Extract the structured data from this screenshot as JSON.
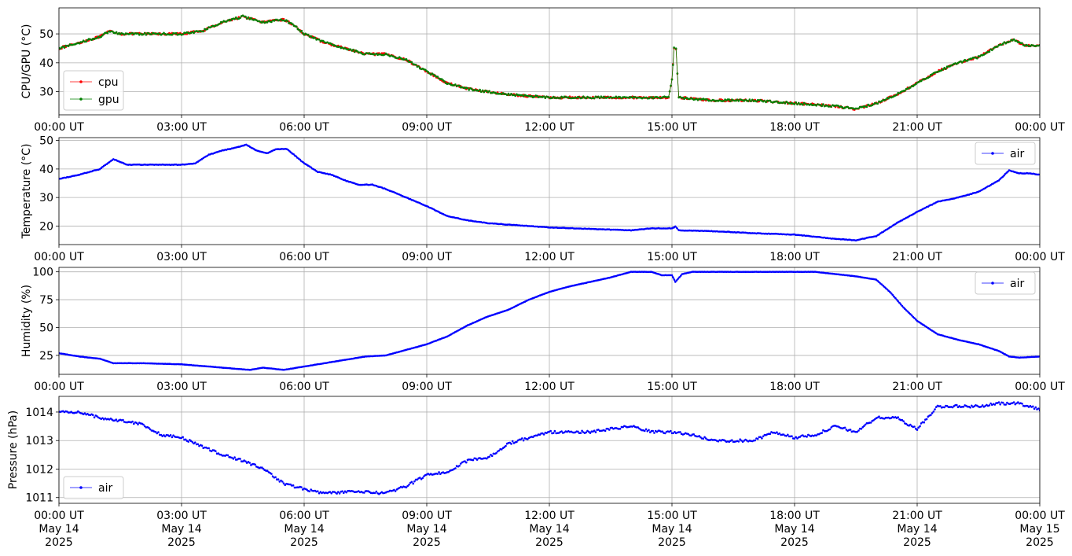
{
  "chart_data": [
    {
      "type": "line",
      "ylabel": "CPU/GPU (°C)",
      "xlim": [
        "00:00",
        "24:00"
      ],
      "ylim": [
        22,
        59
      ],
      "yticks": [
        30,
        40,
        50
      ],
      "grid": true,
      "legend": "lower-left",
      "series": [
        {
          "name": "cpu",
          "color": "#ff0000",
          "points": [
            [
              "00:00",
              45
            ],
            [
              "00:30",
              47
            ],
            [
              "01:00",
              49
            ],
            [
              "01:15",
              51
            ],
            [
              "01:30",
              50
            ],
            [
              "02:00",
              50
            ],
            [
              "02:30",
              50
            ],
            [
              "03:00",
              50
            ],
            [
              "03:30",
              51
            ],
            [
              "04:00",
              54
            ],
            [
              "04:30",
              56
            ],
            [
              "05:00",
              54
            ],
            [
              "05:30",
              55
            ],
            [
              "05:45",
              53
            ],
            [
              "06:00",
              50
            ],
            [
              "06:30",
              47
            ],
            [
              "07:00",
              45
            ],
            [
              "07:30",
              43
            ],
            [
              "08:00",
              43
            ],
            [
              "08:30",
              41
            ],
            [
              "09:00",
              37
            ],
            [
              "09:30",
              33
            ],
            [
              "10:00",
              31
            ],
            [
              "10:30",
              30
            ],
            [
              "11:00",
              29
            ],
            [
              "12:00",
              28
            ],
            [
              "13:00",
              28
            ],
            [
              "14:00",
              28
            ],
            [
              "14:55",
              28
            ],
            [
              "15:00",
              34
            ],
            [
              "15:03",
              45
            ],
            [
              "15:06",
              45
            ],
            [
              "15:10",
              28
            ],
            [
              "16:00",
              27
            ],
            [
              "17:00",
              27
            ],
            [
              "18:00",
              26
            ],
            [
              "19:00",
              25
            ],
            [
              "19:30",
              24
            ],
            [
              "20:00",
              26
            ],
            [
              "20:30",
              29
            ],
            [
              "21:00",
              33
            ],
            [
              "21:30",
              37
            ],
            [
              "22:00",
              40
            ],
            [
              "22:30",
              42
            ],
            [
              "23:00",
              46
            ],
            [
              "23:20",
              48
            ],
            [
              "23:40",
              46
            ],
            [
              "24:00",
              46
            ]
          ]
        },
        {
          "name": "gpu",
          "color": "#008000",
          "points": [
            [
              "00:00",
              45
            ],
            [
              "00:30",
              47
            ],
            [
              "01:00",
              49
            ],
            [
              "01:15",
              51
            ],
            [
              "01:30",
              50
            ],
            [
              "02:00",
              50
            ],
            [
              "02:30",
              50
            ],
            [
              "03:00",
              50
            ],
            [
              "03:30",
              51
            ],
            [
              "04:00",
              54
            ],
            [
              "04:30",
              56
            ],
            [
              "05:00",
              54
            ],
            [
              "05:30",
              55
            ],
            [
              "05:45",
              53
            ],
            [
              "06:00",
              50
            ],
            [
              "06:30",
              47
            ],
            [
              "07:00",
              45
            ],
            [
              "07:30",
              43
            ],
            [
              "08:00",
              43
            ],
            [
              "08:30",
              41
            ],
            [
              "09:00",
              37
            ],
            [
              "09:30",
              33
            ],
            [
              "10:00",
              31
            ],
            [
              "10:30",
              30
            ],
            [
              "11:00",
              29
            ],
            [
              "12:00",
              28
            ],
            [
              "13:00",
              28
            ],
            [
              "14:00",
              28
            ],
            [
              "14:55",
              28
            ],
            [
              "15:00",
              34
            ],
            [
              "15:03",
              45
            ],
            [
              "15:06",
              45
            ],
            [
              "15:10",
              28
            ],
            [
              "16:00",
              27
            ],
            [
              "17:00",
              27
            ],
            [
              "18:00",
              26
            ],
            [
              "19:00",
              25
            ],
            [
              "19:30",
              24
            ],
            [
              "20:00",
              26
            ],
            [
              "20:30",
              29
            ],
            [
              "21:00",
              33
            ],
            [
              "21:30",
              37
            ],
            [
              "22:00",
              40
            ],
            [
              "22:30",
              42
            ],
            [
              "23:00",
              46
            ],
            [
              "23:20",
              48
            ],
            [
              "23:40",
              46
            ],
            [
              "24:00",
              46
            ]
          ]
        }
      ]
    },
    {
      "type": "line",
      "ylabel": "Temperature (°C)",
      "xlim": [
        "00:00",
        "24:00"
      ],
      "ylim": [
        13.5,
        51
      ],
      "yticks": [
        20,
        30,
        40,
        50
      ],
      "grid": true,
      "legend": "upper-right",
      "series": [
        {
          "name": "air",
          "color": "#0000ff",
          "points": [
            [
              "00:00",
              36.5
            ],
            [
              "00:30",
              38
            ],
            [
              "01:00",
              40
            ],
            [
              "01:20",
              43.5
            ],
            [
              "01:40",
              41.5
            ],
            [
              "02:00",
              41.5
            ],
            [
              "02:30",
              41.5
            ],
            [
              "03:00",
              41.5
            ],
            [
              "03:20",
              42
            ],
            [
              "03:40",
              45
            ],
            [
              "04:00",
              46.5
            ],
            [
              "04:20",
              47.5
            ],
            [
              "04:35",
              48.5
            ],
            [
              "04:50",
              46.5
            ],
            [
              "05:05",
              45.5
            ],
            [
              "05:20",
              47
            ],
            [
              "05:35",
              47
            ],
            [
              "05:50",
              44
            ],
            [
              "06:00",
              42
            ],
            [
              "06:20",
              39
            ],
            [
              "06:40",
              38
            ],
            [
              "07:00",
              36
            ],
            [
              "07:20",
              34.5
            ],
            [
              "07:40",
              34.5
            ],
            [
              "08:00",
              33
            ],
            [
              "08:30",
              30
            ],
            [
              "09:00",
              27
            ],
            [
              "09:30",
              23.5
            ],
            [
              "10:00",
              22
            ],
            [
              "10:30",
              21
            ],
            [
              "11:00",
              20.5
            ],
            [
              "12:00",
              19.5
            ],
            [
              "13:00",
              19
            ],
            [
              "14:00",
              18.5
            ],
            [
              "14:30",
              19.2
            ],
            [
              "15:00",
              19.2
            ],
            [
              "15:05",
              19.8
            ],
            [
              "15:10",
              18.5
            ],
            [
              "16:00",
              18.2
            ],
            [
              "17:00",
              17.5
            ],
            [
              "18:00",
              17
            ],
            [
              "19:00",
              15.5
            ],
            [
              "19:30",
              15
            ],
            [
              "20:00",
              16.5
            ],
            [
              "20:30",
              21
            ],
            [
              "21:00",
              25
            ],
            [
              "21:30",
              28.5
            ],
            [
              "22:00",
              30
            ],
            [
              "22:30",
              32
            ],
            [
              "23:00",
              36
            ],
            [
              "23:15",
              39.5
            ],
            [
              "23:30",
              38.5
            ],
            [
              "23:45",
              38.5
            ],
            [
              "24:00",
              38
            ]
          ]
        }
      ]
    },
    {
      "type": "line",
      "ylabel": "Humidity (%)",
      "xlim": [
        "00:00",
        "24:00"
      ],
      "ylim": [
        8,
        104
      ],
      "yticks": [
        25,
        50,
        75,
        100
      ],
      "grid": true,
      "legend": "upper-right",
      "series": [
        {
          "name": "air",
          "color": "#0000ff",
          "points": [
            [
              "00:00",
              27
            ],
            [
              "00:30",
              24
            ],
            [
              "01:00",
              22
            ],
            [
              "01:20",
              18
            ],
            [
              "02:00",
              18
            ],
            [
              "03:00",
              17
            ],
            [
              "04:00",
              14
            ],
            [
              "04:40",
              12
            ],
            [
              "05:00",
              14
            ],
            [
              "05:30",
              12
            ],
            [
              "06:00",
              15
            ],
            [
              "06:30",
              18
            ],
            [
              "07:00",
              21
            ],
            [
              "07:30",
              24
            ],
            [
              "08:00",
              25
            ],
            [
              "08:30",
              30
            ],
            [
              "09:00",
              35
            ],
            [
              "09:30",
              42
            ],
            [
              "10:00",
              52
            ],
            [
              "10:30",
              60
            ],
            [
              "11:00",
              66
            ],
            [
              "11:30",
              75
            ],
            [
              "12:00",
              82
            ],
            [
              "12:30",
              87
            ],
            [
              "13:00",
              91
            ],
            [
              "13:30",
              95
            ],
            [
              "14:00",
              100
            ],
            [
              "14:30",
              100
            ],
            [
              "14:45",
              97
            ],
            [
              "15:00",
              97
            ],
            [
              "15:05",
              91
            ],
            [
              "15:15",
              98
            ],
            [
              "15:30",
              100
            ],
            [
              "18:30",
              100
            ],
            [
              "19:00",
              98
            ],
            [
              "19:30",
              96
            ],
            [
              "20:00",
              93
            ],
            [
              "20:20",
              82
            ],
            [
              "20:40",
              68
            ],
            [
              "21:00",
              56
            ],
            [
              "21:30",
              44
            ],
            [
              "22:00",
              39
            ],
            [
              "22:30",
              35
            ],
            [
              "23:00",
              29
            ],
            [
              "23:15",
              24
            ],
            [
              "23:30",
              23
            ],
            [
              "24:00",
              24
            ]
          ]
        }
      ]
    },
    {
      "type": "scatter",
      "ylabel": "Pressure (hPa)",
      "xlim": [
        "00:00",
        "24:00"
      ],
      "ylim": [
        1010.8,
        1014.55
      ],
      "yticks": [
        1011,
        1012,
        1013,
        1014
      ],
      "grid": true,
      "legend": "lower-left",
      "date_labels": [
        "May 14\n2025",
        "May 14\n2025",
        "May 14\n2025",
        "May 14\n2025",
        "May 14\n2025",
        "May 14\n2025",
        "May 14\n2025",
        "May 14\n2025",
        "May 15\n2025"
      ],
      "series": [
        {
          "name": "air",
          "color": "#0000ff",
          "points": [
            [
              "00:00",
              1014.0
            ],
            [
              "00:30",
              1014.0
            ],
            [
              "01:00",
              1013.8
            ],
            [
              "01:30",
              1013.7
            ],
            [
              "02:00",
              1013.6
            ],
            [
              "02:30",
              1013.2
            ],
            [
              "03:00",
              1013.1
            ],
            [
              "03:30",
              1012.8
            ],
            [
              "04:00",
              1012.5
            ],
            [
              "04:30",
              1012.3
            ],
            [
              "05:00",
              1012.0
            ],
            [
              "05:30",
              1011.5
            ],
            [
              "06:00",
              1011.3
            ],
            [
              "06:30",
              1011.15
            ],
            [
              "07:00",
              1011.2
            ],
            [
              "07:30",
              1011.2
            ],
            [
              "08:00",
              1011.15
            ],
            [
              "08:30",
              1011.4
            ],
            [
              "09:00",
              1011.8
            ],
            [
              "09:30",
              1011.9
            ],
            [
              "10:00",
              1012.3
            ],
            [
              "10:30",
              1012.4
            ],
            [
              "11:00",
              1012.9
            ],
            [
              "11:30",
              1013.1
            ],
            [
              "12:00",
              1013.3
            ],
            [
              "13:00",
              1013.3
            ],
            [
              "14:00",
              1013.5
            ],
            [
              "14:30",
              1013.3
            ],
            [
              "15:00",
              1013.3
            ],
            [
              "15:30",
              1013.2
            ],
            [
              "16:00",
              1013.0
            ],
            [
              "16:30",
              1013.0
            ],
            [
              "17:00",
              1013.0
            ],
            [
              "17:30",
              1013.3
            ],
            [
              "18:00",
              1013.1
            ],
            [
              "18:30",
              1013.2
            ],
            [
              "19:00",
              1013.5
            ],
            [
              "19:30",
              1013.3
            ],
            [
              "20:00",
              1013.8
            ],
            [
              "20:30",
              1013.8
            ],
            [
              "21:00",
              1013.4
            ],
            [
              "21:30",
              1014.2
            ],
            [
              "22:00",
              1014.2
            ],
            [
              "22:30",
              1014.2
            ],
            [
              "23:00",
              1014.3
            ],
            [
              "23:30",
              1014.3
            ],
            [
              "24:00",
              1014.1
            ]
          ]
        }
      ]
    }
  ],
  "xtick_labels": [
    "00:00 UT",
    "03:00 UT",
    "06:00 UT",
    "09:00 UT",
    "12:00 UT",
    "15:00 UT",
    "18:00 UT",
    "21:00 UT",
    "00:00 UT"
  ]
}
